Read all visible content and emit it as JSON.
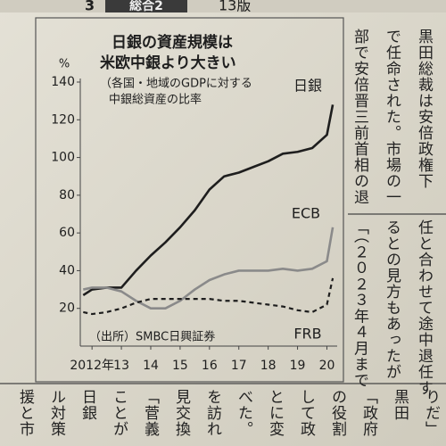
{
  "header": {
    "page_number": "3",
    "section": "総合2",
    "edition": "13版"
  },
  "chart_data": {
    "type": "line",
    "title_lines": [
      "日銀の資産規模は",
      "米欧中銀より大きい"
    ],
    "subtitle_lines": [
      "（各国・地域のGDPに対する",
      "中銀総資産の比率"
    ],
    "y_unit": "%",
    "source": "（出所）SMBC日興証券",
    "x": [
      2011.7,
      2012,
      2012.5,
      2013,
      2013.5,
      2014,
      2014.5,
      2015,
      2015.5,
      2016,
      2016.5,
      2017,
      2017.5,
      2018,
      2018.5,
      2019,
      2019.5,
      2020,
      2020.2
    ],
    "series": [
      {
        "name": "日銀",
        "color": "#1e1e1e",
        "line_style": "solid",
        "values": [
          27,
          30,
          31,
          31,
          40,
          48,
          55,
          63,
          72,
          83,
          90,
          92,
          95,
          98,
          102,
          103,
          105,
          112,
          128
        ]
      },
      {
        "name": "ECB",
        "color": "#8a8a8a",
        "line_style": "solid",
        "values": [
          30,
          31,
          31,
          29,
          24,
          20,
          20,
          24,
          30,
          35,
          38,
          40,
          40,
          40,
          41,
          40,
          41,
          45,
          63
        ]
      },
      {
        "name": "FRB",
        "color": "#1e1e1e",
        "line_style": "dashed",
        "values": [
          18,
          17,
          18,
          20,
          23,
          25,
          25,
          25,
          25,
          25,
          24,
          24,
          23,
          22,
          21,
          19,
          18,
          22,
          36
        ]
      }
    ],
    "xlim": [
      2011.6,
      2020.35
    ],
    "xticks": [
      {
        "value": 2012,
        "label": "2012年"
      },
      {
        "value": 2013,
        "label": "13"
      },
      {
        "value": 2014,
        "label": "14"
      },
      {
        "value": 2015,
        "label": "15"
      },
      {
        "value": 2016,
        "label": "16"
      },
      {
        "value": 2017,
        "label": "17"
      },
      {
        "value": 2018,
        "label": "18"
      },
      {
        "value": 2019,
        "label": "19"
      },
      {
        "value": 2020,
        "label": "20"
      }
    ],
    "ylim": [
      0,
      140
    ],
    "yticks": [
      20,
      40,
      60,
      80,
      100,
      120,
      140
    ],
    "grid": false
  },
  "article": {
    "upper_columns": [
      "黒田総裁は安倍政権下",
      "で任命された。市場の一",
      "部で安倍晋三前首相の退"
    ],
    "middle_columns": [
      "任と合わせて途中退任す",
      "るとの見方もあったが",
      "「（２０２３年４月まで"
    ],
    "lower_columns": [
      "りだ」",
      "黒田",
      "「政府",
      "の役割",
      "して政",
      "とに変",
      "べた。",
      "を訪れ",
      "見交換",
      "「菅義",
      "ことが",
      "日銀",
      "ル対策",
      "援と市"
    ]
  }
}
